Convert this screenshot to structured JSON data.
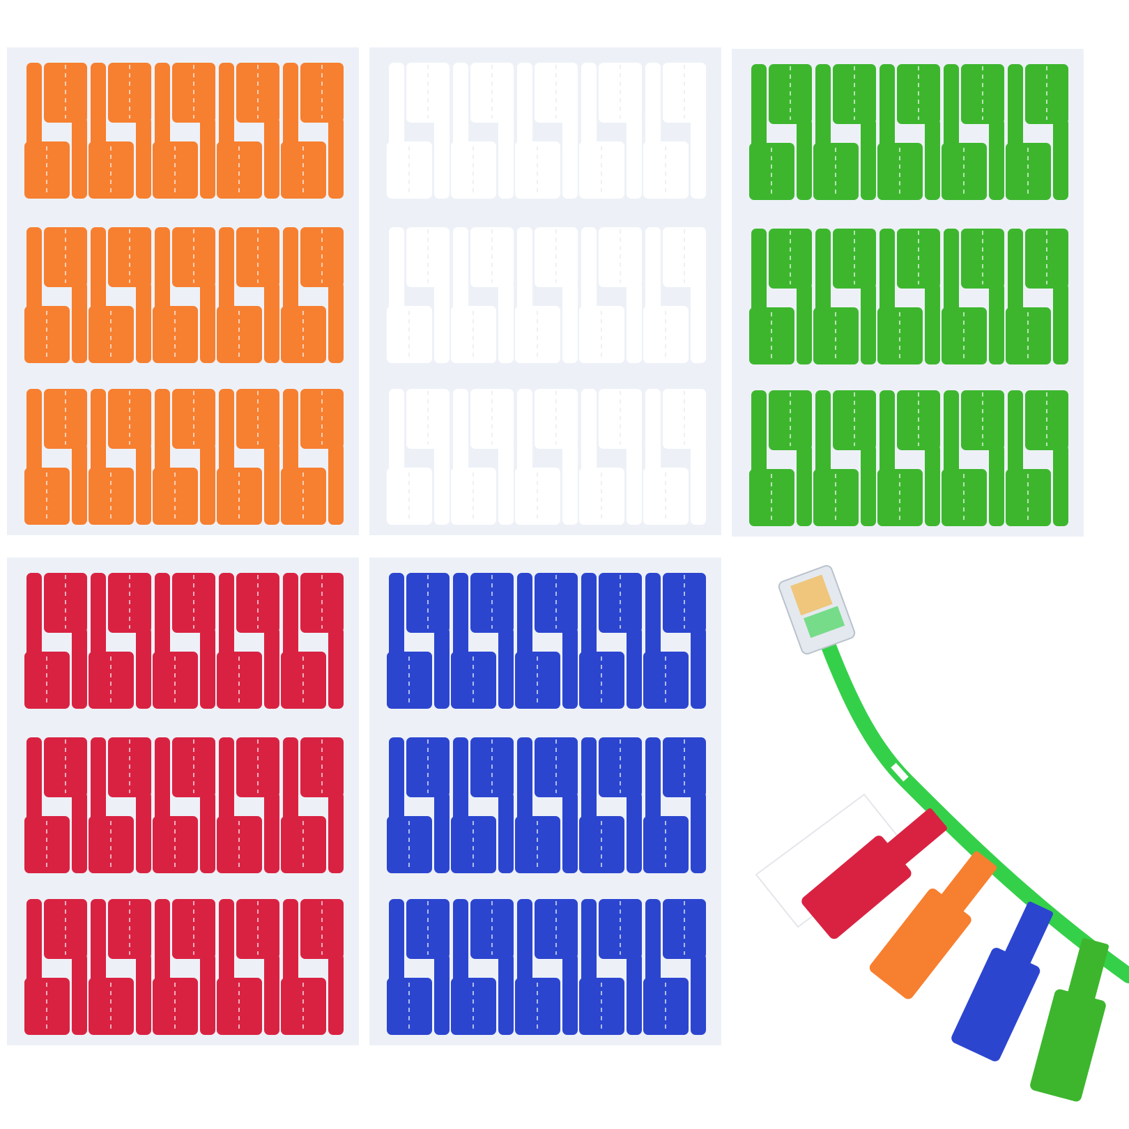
{
  "colors": {
    "background": "#ffffff",
    "sheet": "#EDF1F7",
    "orange": "#F77F30",
    "white": "#ffffff",
    "green": "#3DB62E",
    "red": "#D92242",
    "blue": "#2C45CF",
    "cable": "#35D04A"
  },
  "sheets": [
    {
      "color": "orange",
      "labels_per_row": 10,
      "rows": 3
    },
    {
      "color": "white",
      "labels_per_row": 10,
      "rows": 3
    },
    {
      "color": "green",
      "labels_per_row": 10,
      "rows": 3
    },
    {
      "color": "red",
      "labels_per_row": 10,
      "rows": 3
    },
    {
      "color": "blue",
      "labels_per_row": 10,
      "rows": 3
    }
  ],
  "illustration": {
    "subject": "ethernet-cable-with-flag-labels",
    "tag_colors": [
      "white",
      "red",
      "orange",
      "blue",
      "green"
    ]
  }
}
